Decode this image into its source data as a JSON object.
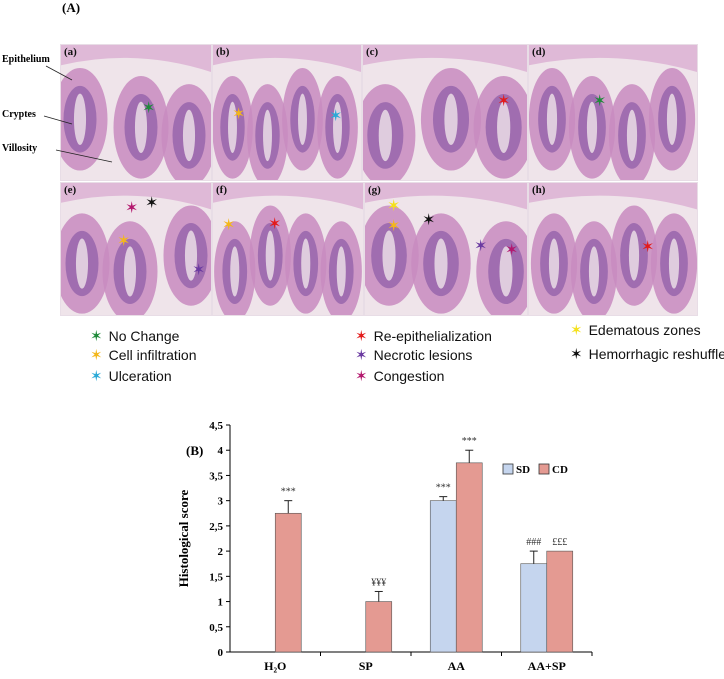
{
  "figure": {
    "panel_a_label": "(A)",
    "panel_b_label": "(B)",
    "tiles": [
      {
        "label": "(a)"
      },
      {
        "label": "(b)"
      },
      {
        "label": "(c)"
      },
      {
        "label": "(d)"
      },
      {
        "label": "(e)"
      },
      {
        "label": "(f)"
      },
      {
        "label": "(g)"
      },
      {
        "label": "(h)"
      }
    ],
    "structures": {
      "epithelium": "Epithelium",
      "cryptes": "Cryptes",
      "villosity": "Villosity"
    },
    "legend": [
      {
        "label": "No Change",
        "color": "#1f8a3a"
      },
      {
        "label": "Cell infiltration",
        "color": "#f3b71a"
      },
      {
        "label": "Ulceration",
        "color": "#2aa9d6"
      },
      {
        "label": "Re-epithelialization",
        "color": "#e31b1b"
      },
      {
        "label": "Necrotic lesions",
        "color": "#6a3aa0"
      },
      {
        "label": "Congestion",
        "color": "#b3186e"
      },
      {
        "label": "Edematous zones",
        "color": "#f5e11b"
      },
      {
        "label": "Hemorrhagic reshuffles",
        "color": "#111111"
      }
    ],
    "stain_colors": {
      "tissue": "#c88bbf",
      "crypt": "#7a4a9e",
      "light": "#efe4ea",
      "muscle": "#d9a6cf"
    }
  },
  "chart_data": {
    "type": "bar",
    "ylabel": "Histological score",
    "categories": [
      "H₂O",
      "SP",
      "AA",
      "AA+SP"
    ],
    "ylim": [
      0,
      4.5
    ],
    "ytick_labels": [
      "0",
      "0,5",
      "1",
      "1,5",
      "2",
      "2,5",
      "3",
      "3,5",
      "4",
      "4,5"
    ],
    "legend_position": "top-right",
    "series": [
      {
        "name": "SD",
        "color": "#c5d5ee",
        "values": [
          0,
          0,
          3.0,
          1.75
        ],
        "errors": [
          0,
          0,
          0.08,
          0.25
        ],
        "annotations": [
          "",
          "",
          "***",
          "###"
        ]
      },
      {
        "name": "CD",
        "color": "#e49a92",
        "values": [
          2.75,
          1.0,
          3.75,
          2.0
        ],
        "errors": [
          0.25,
          0.2,
          0.25,
          0
        ],
        "annotations": [
          "***",
          "¥¥¥",
          "***",
          "£££"
        ]
      }
    ]
  }
}
